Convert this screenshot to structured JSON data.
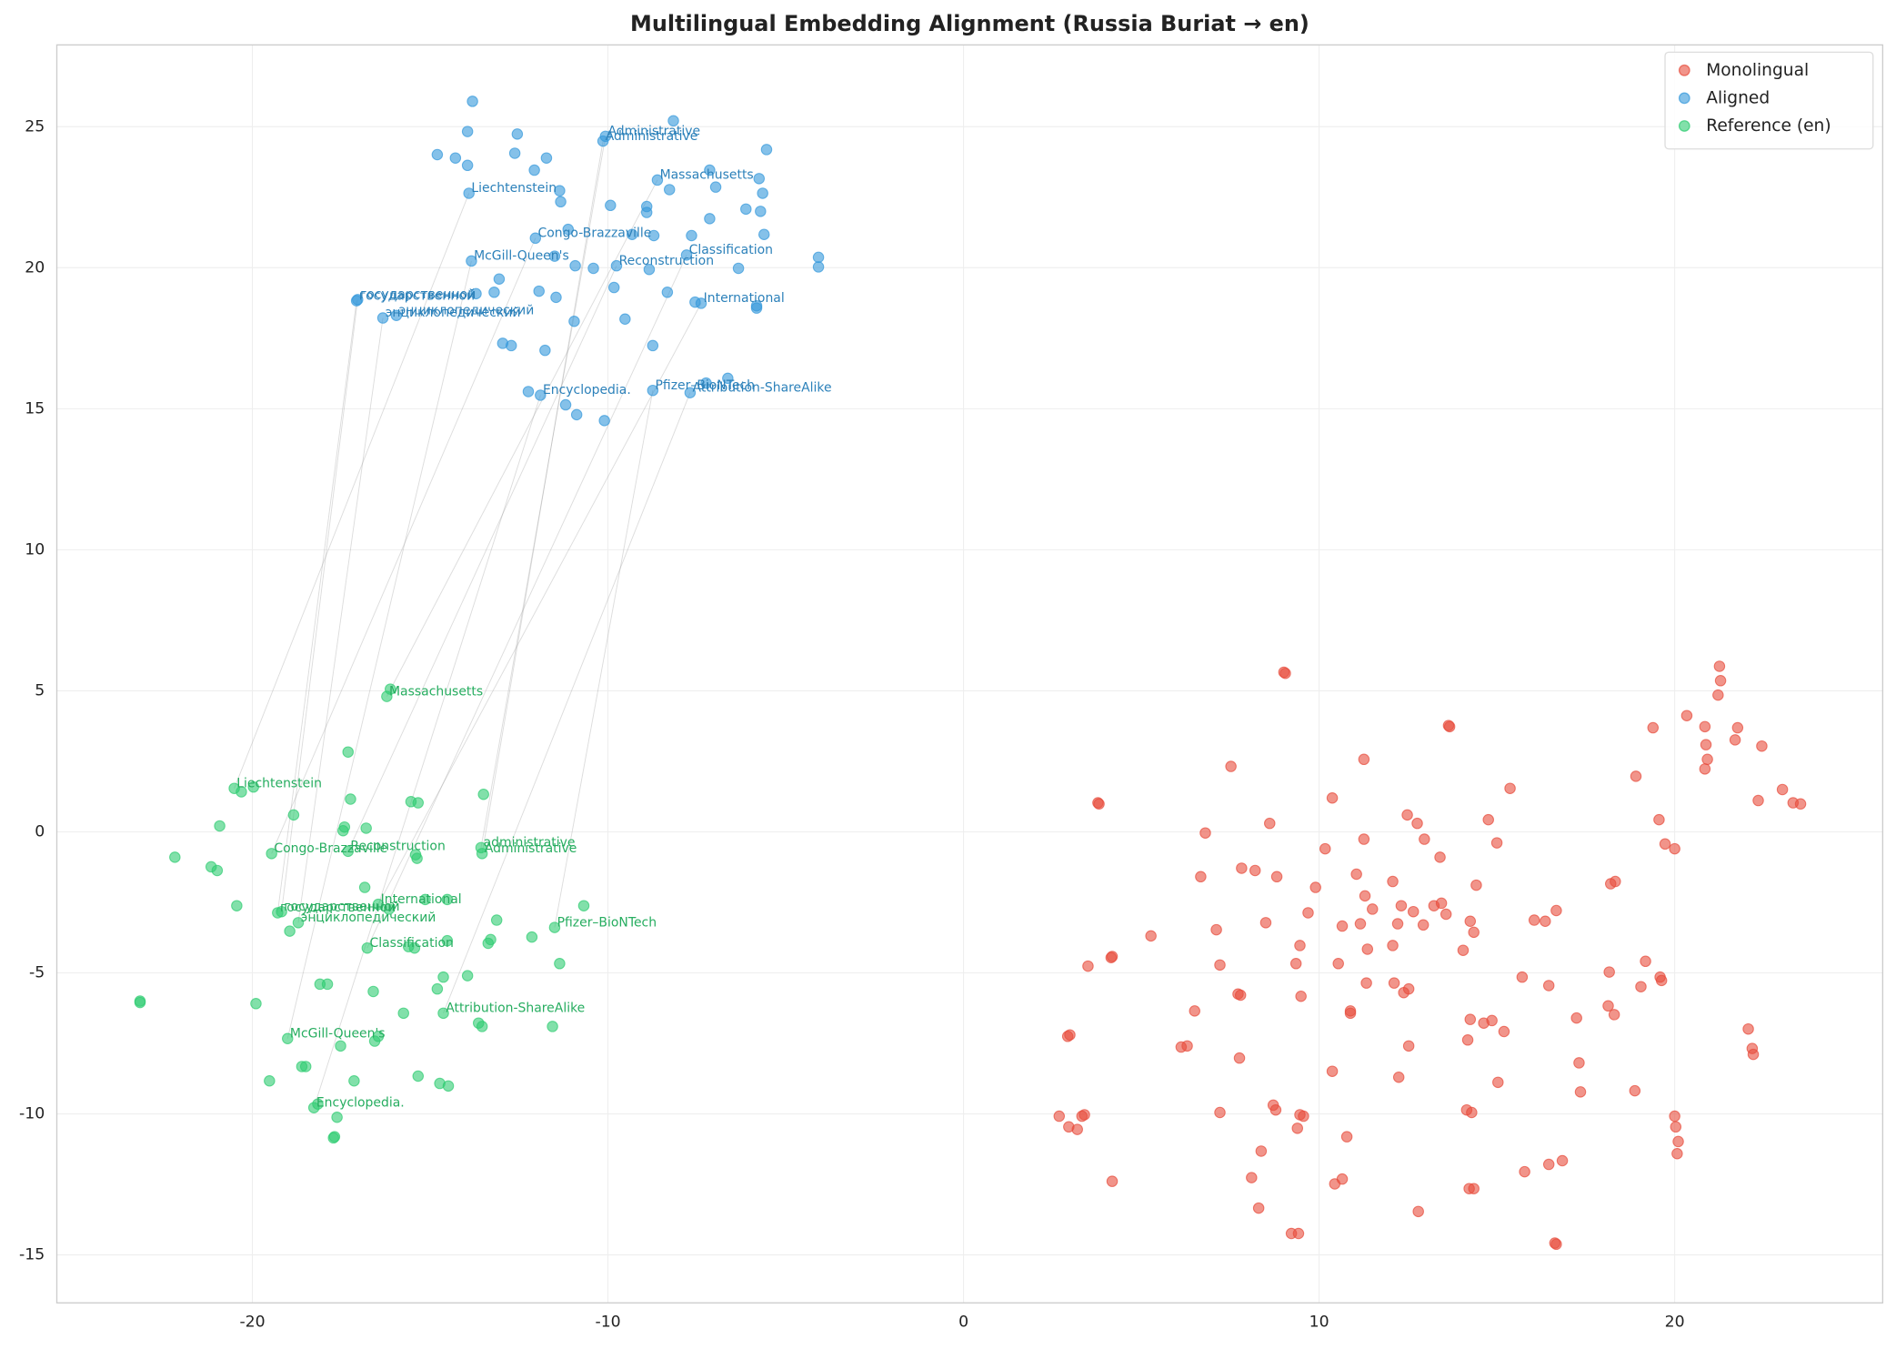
{
  "chart_data": {
    "type": "scatter",
    "title": "Multilingual Embedding Alignment (Russia Buriat → en)",
    "xlim": [
      -25.5,
      25.85
    ],
    "ylim": [
      -16.7,
      27.9
    ],
    "xticks": [
      -20,
      -10,
      0,
      10,
      20
    ],
    "yticks": [
      -15,
      -10,
      -5,
      0,
      5,
      10,
      15,
      20,
      25
    ],
    "grid": true,
    "legend": "upper right",
    "series": [
      {
        "name": "Monolingual",
        "color": "#e74c3c",
        "x": [
          9.01,
          9.05,
          21.26,
          21.29,
          21.22,
          13.64,
          13.67,
          20.34,
          19.39,
          20.85,
          21.77,
          21.7,
          20.88,
          20.92,
          20.85,
          22.45,
          3.78,
          3.81,
          7.52,
          11.26,
          15.37,
          10.37,
          12.48,
          12.76,
          8.61,
          14.76,
          18.91,
          19.56,
          23.03,
          22.35,
          23.33,
          23.54,
          6.8,
          11.26,
          12.96,
          15.0,
          10.17,
          19.73,
          20.0,
          7.82,
          8.2,
          8.81,
          6.67,
          9.9,
          11.05,
          12.07,
          13.4,
          14.42,
          11.29,
          11.5,
          12.65,
          12.31,
          12.21,
          12.93,
          13.23,
          13.44,
          13.57,
          14.25,
          14.35,
          16.05,
          16.36,
          16.67,
          9.69,
          10.65,
          11.16,
          12.07,
          9.46,
          8.5,
          7.11,
          5.27,
          4.18,
          4.15,
          3.5,
          7.21,
          9.35,
          10.54,
          11.36,
          14.05,
          12.11,
          11.33,
          15.71,
          16.46,
          19.18,
          19.59,
          19.63,
          18.16,
          19.05,
          18.13,
          18.3,
          17.24,
          14.86,
          14.25,
          14.63,
          15.2,
          9.49,
          10.88,
          10.88,
          12.52,
          12.38,
          7.72,
          7.79,
          6.5,
          22.07,
          18.2,
          18.33,
          6.29,
          6.12,
          12.52,
          14.18,
          17.31,
          7.76,
          10.37,
          12.24,
          15.03,
          17.35,
          18.88,
          22.18,
          22.21,
          8.71,
          8.78,
          9.46,
          9.56,
          9.39,
          14.15,
          14.29,
          7.21,
          3.4,
          3.33,
          2.69,
          2.96,
          3.2,
          2.93,
          2.99,
          20.0,
          20.03,
          20.1,
          20.07,
          10.78,
          8.37,
          15.78,
          16.46,
          16.84,
          8.1,
          4.18,
          10.65,
          10.44,
          14.22,
          14.35,
          8.3,
          12.79,
          9.22,
          9.42,
          16.67,
          16.63
        ],
        "y": [
          5.66,
          5.62,
          5.87,
          5.36,
          4.85,
          3.77,
          3.73,
          4.12,
          3.69,
          3.73,
          3.69,
          3.26,
          3.09,
          2.57,
          2.23,
          3.04,
          1.03,
          0.99,
          2.32,
          2.57,
          1.54,
          1.2,
          0.6,
          0.3,
          0.3,
          0.43,
          1.97,
          0.43,
          1.5,
          1.11,
          1.03,
          0.99,
          -0.04,
          -0.26,
          -0.26,
          -0.39,
          -0.6,
          -0.43,
          -0.6,
          -1.29,
          -1.37,
          -1.59,
          -1.59,
          -1.97,
          -1.5,
          -1.76,
          -0.9,
          -1.89,
          -2.27,
          -2.74,
          -2.83,
          -2.62,
          -3.26,
          -3.3,
          -2.62,
          -2.53,
          -2.92,
          -3.17,
          -3.56,
          -3.13,
          -3.17,
          -2.79,
          -2.87,
          -3.34,
          -3.26,
          -4.03,
          -4.03,
          -3.22,
          -3.47,
          -3.69,
          -4.42,
          -4.46,
          -4.76,
          -4.72,
          -4.67,
          -4.67,
          -4.16,
          -4.2,
          -5.36,
          -5.36,
          -5.15,
          -5.45,
          -4.59,
          -5.15,
          -5.27,
          -4.97,
          -5.49,
          -6.17,
          -6.48,
          -6.6,
          -6.69,
          -6.65,
          -6.78,
          -7.08,
          -5.83,
          -6.43,
          -6.35,
          -5.57,
          -5.7,
          -5.75,
          -5.79,
          -6.35,
          -6.99,
          -1.84,
          -1.76,
          -7.59,
          -7.63,
          -7.59,
          -7.38,
          -8.19,
          -8.02,
          -8.49,
          -8.7,
          -8.88,
          -9.22,
          -9.18,
          -7.68,
          -7.89,
          -9.69,
          -9.86,
          -10.03,
          -10.08,
          -10.51,
          -9.86,
          -9.95,
          -9.95,
          -10.03,
          -10.08,
          -10.08,
          -10.46,
          -10.55,
          -7.25,
          -7.2,
          -10.08,
          -10.46,
          -10.98,
          -11.41,
          -10.81,
          -11.32,
          -12.05,
          -11.79,
          -11.66,
          -12.26,
          -12.39,
          -12.31,
          -12.48,
          -12.65,
          -12.65,
          -13.34,
          -13.46,
          -14.24,
          -14.24,
          -14.62,
          -14.58
        ]
      },
      {
        "name": "Aligned",
        "color": "#3498db",
        "x": [
          -10.07,
          -10.14,
          -13.91,
          -8.61,
          -12.04,
          -7.79,
          -13.84,
          -9.76,
          -17.07,
          -17.04,
          -16.33,
          -15.95,
          -7.38,
          -11.9,
          -8.74,
          -7.69,
          -13.81,
          -13.95,
          -14.8,
          -14.29,
          -13.95,
          -12.55,
          -12.62,
          -12.07,
          -11.73,
          -11.36,
          -11.33,
          -11.12,
          -8.16,
          -9.93,
          -8.91,
          -8.91,
          -8.27,
          -7.14,
          -6.97,
          -5.54,
          -5.75,
          -5.65,
          -5.71,
          -6.12,
          -5.61,
          -7.65,
          -7.14,
          -8.71,
          -9.32,
          -11.5,
          -10.92,
          -10.41,
          -8.84,
          -6.33,
          -4.08,
          -4.08,
          -13.06,
          -13.2,
          -13.71,
          -11.94,
          -11.46,
          -9.83,
          -8.33,
          -7.55,
          -5.82,
          -5.82,
          -10.95,
          -9.52,
          -12.96,
          -12.72,
          -11.77,
          -8.74,
          -6.63,
          -11.19,
          -10.88,
          -10.1,
          -12.24,
          -7.24
        ],
        "y": [
          24.66,
          24.49,
          22.64,
          23.11,
          21.05,
          20.45,
          20.24,
          20.07,
          18.83,
          18.87,
          18.22,
          18.31,
          18.74,
          15.48,
          15.65,
          15.57,
          25.9,
          24.83,
          24.01,
          23.89,
          23.63,
          24.74,
          24.06,
          23.46,
          23.89,
          22.73,
          22.34,
          21.36,
          25.21,
          22.21,
          21.96,
          22.17,
          22.77,
          23.46,
          22.86,
          24.19,
          23.16,
          22.64,
          22.0,
          22.08,
          21.18,
          21.14,
          21.74,
          21.14,
          21.18,
          20.41,
          20.07,
          19.98,
          19.94,
          19.98,
          20.37,
          20.03,
          19.6,
          19.13,
          19.08,
          19.17,
          18.95,
          19.3,
          19.13,
          18.78,
          18.65,
          18.57,
          18.1,
          18.18,
          17.32,
          17.24,
          17.07,
          17.24,
          16.08,
          15.14,
          14.79,
          14.58,
          15.61,
          15.91
        ],
        "labels": [
          "Administrative",
          "Administrative",
          "Liechtenstein",
          "Massachusetts",
          "Congo-Brazzaville",
          "Classification",
          "McGill-Queen's",
          "Reconstruction",
          "государственной",
          "государственной",
          "энциклопедический",
          "энциклопедический",
          "International",
          "Encyclopedia.",
          "Pfizer–BioNTech",
          "Attribution-ShareAlike",
          null,
          null,
          null,
          null,
          null,
          null,
          null,
          null,
          null,
          null,
          null,
          null,
          null,
          null,
          null,
          null,
          null,
          null,
          null,
          null,
          null,
          null,
          null,
          null,
          null,
          null,
          null,
          null,
          null,
          null,
          null,
          null,
          null,
          null,
          null,
          null,
          null,
          null,
          null,
          null,
          null,
          null,
          null,
          null,
          null,
          null,
          null,
          null,
          null,
          null,
          null,
          null,
          null,
          null,
          null,
          null,
          null,
          null
        ]
      },
      {
        "name": "Reference (en)",
        "color": "#2ecc71",
        "x": [
          -16.22,
          -20.51,
          -19.46,
          -17.31,
          -13.57,
          -13.54,
          -16.46,
          -19.29,
          -19.18,
          -18.71,
          -16.77,
          -11.5,
          -14.63,
          -19.01,
          -18.27,
          -16.12,
          -17.31,
          -17.24,
          -17.41,
          -17.45,
          -16.8,
          -18.84,
          -20.31,
          -19.97,
          -20.92,
          -22.18,
          -21.16,
          -20.99,
          -20.44,
          -15.34,
          -15.54,
          -13.5,
          -15.37,
          -15.41,
          -16.84,
          -15.14,
          -14.52,
          -16.16,
          -13.13,
          -12.14,
          -10.68,
          -18.95,
          -13.3,
          -13.37,
          -14.52,
          -15.61,
          -15.44,
          -11.36,
          -13.95,
          -14.63,
          -14.8,
          -18.1,
          -17.89,
          -16.6,
          -15.75,
          -19.9,
          -23.16,
          -23.16,
          -18.5,
          -18.61,
          -17.52,
          -16.56,
          -16.46,
          -13.64,
          -13.54,
          -11.56,
          -19.52,
          -17.14,
          -15.34,
          -14.73,
          -14.49,
          -17.62,
          -18.16,
          -17.69,
          -17.72
        ],
        "y": [
          4.8,
          1.54,
          -0.77,
          -0.69,
          -0.56,
          -0.77,
          -2.57,
          -2.87,
          -2.83,
          -3.22,
          -4.12,
          -3.39,
          -6.43,
          -7.33,
          -9.78,
          5.06,
          2.83,
          1.16,
          0.17,
          0.04,
          0.13,
          0.6,
          1.42,
          1.59,
          0.21,
          -0.9,
          -1.24,
          -1.37,
          -2.62,
          1.03,
          1.07,
          1.33,
          -0.94,
          -0.81,
          -1.97,
          -2.4,
          -2.4,
          -2.74,
          -3.13,
          -3.73,
          -2.62,
          -3.52,
          -3.82,
          -3.95,
          -3.86,
          -4.07,
          -4.12,
          -4.67,
          -5.1,
          -5.15,
          -5.57,
          -5.4,
          -5.4,
          -5.66,
          -6.43,
          -6.09,
          -6.0,
          -6.05,
          -8.32,
          -8.32,
          -7.59,
          -7.42,
          -7.25,
          -6.78,
          -6.9,
          -6.9,
          -8.83,
          -8.83,
          -8.66,
          -8.92,
          -9.01,
          -10.12,
          -9.65,
          -10.81,
          -10.85
        ],
        "labels": [
          "Massachusetts",
          "Liechtenstein",
          "Congo-Brazzaville",
          "Reconstruction",
          "administrative",
          "Administrative",
          "International",
          "государственной",
          "государственной",
          "энциклопедический",
          "Classification",
          "Pfizer–BioNTech",
          "Attribution-ShareAlike",
          "McGill-Queen's",
          "Encyclopedia.",
          null,
          null,
          null,
          null,
          null,
          null,
          null,
          null,
          null,
          null,
          null,
          null,
          null,
          null,
          null,
          null,
          null,
          null,
          null,
          null,
          null,
          null,
          null,
          null,
          null,
          null,
          null,
          null,
          null,
          null,
          null,
          null,
          null,
          null,
          null,
          null,
          null,
          null,
          null,
          null,
          null,
          null,
          null,
          null,
          null,
          null,
          null,
          null,
          null,
          null,
          null,
          null,
          null,
          null,
          null,
          null,
          null,
          null,
          null,
          null
        ]
      }
    ]
  }
}
